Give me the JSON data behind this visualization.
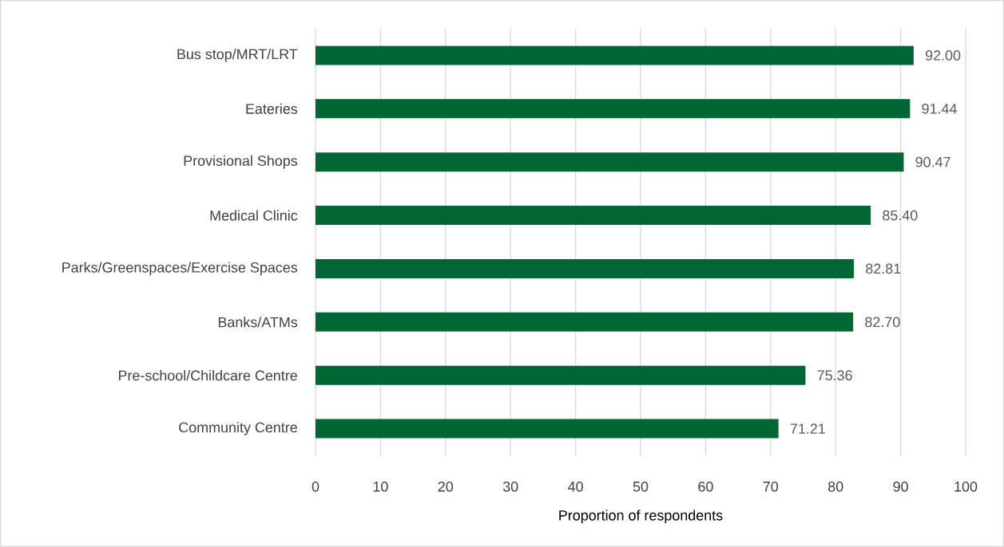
{
  "chart_data": {
    "type": "bar",
    "orientation": "horizontal",
    "xlabel": "Proportion of respondents",
    "categories": [
      "Bus stop/MRT/LRT",
      "Eateries",
      "Provisional Shops",
      "Medical Clinic",
      "Parks/Greenspaces/Exercise Spaces",
      "Banks/ATMs",
      "Pre-school/Childcare Centre",
      "Community Centre"
    ],
    "values": [
      92.0,
      91.44,
      90.47,
      85.4,
      82.81,
      82.7,
      75.36,
      71.21
    ],
    "value_labels": [
      "92.00",
      "91.44",
      "90.47",
      "85.40",
      "82.81",
      "82.70",
      "75.36",
      "71.21"
    ],
    "color": "#006633",
    "xlim": [
      0,
      100
    ],
    "xticks": [
      0,
      10,
      20,
      30,
      40,
      50,
      60,
      70,
      80,
      90,
      100
    ],
    "grid": "x"
  }
}
